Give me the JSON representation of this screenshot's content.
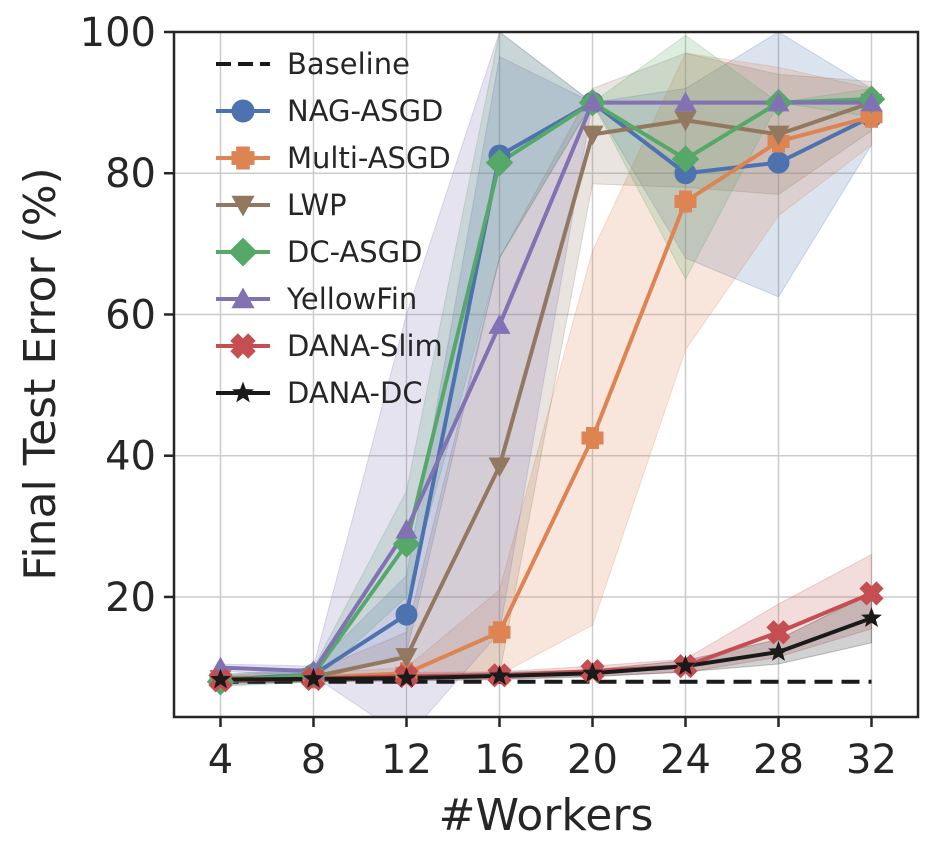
{
  "chart_data": {
    "type": "line",
    "title": "",
    "xlabel": "#Workers",
    "ylabel": "Final Test Error (%)",
    "x": [
      4,
      8,
      12,
      16,
      20,
      24,
      28,
      32
    ],
    "xlim": [
      2,
      34
    ],
    "ylim": [
      3,
      100
    ],
    "xticks": [
      "4",
      "8",
      "12",
      "16",
      "20",
      "24",
      "28",
      "32"
    ],
    "yticks": [
      "20",
      "40",
      "60",
      "80",
      "100"
    ],
    "ytick_values": [
      20,
      40,
      60,
      80,
      100
    ],
    "grid": true,
    "legend_position": "top-left",
    "series": [
      {
        "name": "Baseline",
        "color": "#1a1a1a",
        "marker": "none",
        "dashed": true,
        "values": [
          8,
          8,
          8,
          8,
          8,
          8,
          8,
          8
        ],
        "band": null
      },
      {
        "name": "NAG-ASGD",
        "color": "#4c72b0",
        "marker": "circle",
        "dashed": false,
        "values": [
          8.3,
          9.0,
          17.5,
          82.5,
          90,
          80,
          81.5,
          88
        ],
        "band": {
          "lower": [
            7.5,
            8.0,
            12,
            68,
            90,
            68,
            62.5,
            84
          ],
          "upper": [
            9.0,
            10.0,
            23,
            96.5,
            90,
            92,
            100,
            92
          ]
        }
      },
      {
        "name": "Multi-ASGD",
        "color": "#dd8452",
        "marker": "plus",
        "dashed": false,
        "values": [
          8.3,
          8.6,
          9.2,
          15,
          42.5,
          76,
          84.5,
          88
        ],
        "band": {
          "lower": [
            7.8,
            8.0,
            8.5,
            9,
            16,
            55,
            74,
            84
          ],
          "upper": [
            8.8,
            9.2,
            10.0,
            21,
            69,
            97,
            95,
            92
          ]
        }
      },
      {
        "name": "LWP",
        "color": "#937860",
        "marker": "triangle-down",
        "dashed": false,
        "values": [
          8.4,
          8.7,
          11.5,
          38.5,
          85.5,
          87.5,
          85.5,
          90
        ],
        "band": {
          "lower": [
            7.8,
            8.0,
            8.5,
            9,
            78.5,
            78,
            77,
            86
          ],
          "upper": [
            9.0,
            9.5,
            15,
            68,
            92,
            97,
            94,
            93
          ]
        }
      },
      {
        "name": "DC-ASGD",
        "color": "#55a868",
        "marker": "diamond",
        "dashed": false,
        "values": [
          8.0,
          9.0,
          27.5,
          81.5,
          90,
          82,
          90,
          90.5
        ],
        "band": {
          "lower": [
            7.3,
            8.0,
            20,
            68,
            90,
            65,
            90,
            88
          ],
          "upper": [
            8.7,
            10.0,
            35,
            100,
            90,
            99.5,
            90,
            92
          ]
        }
      },
      {
        "name": "YellowFin",
        "color": "#8172b3",
        "marker": "triangle-up",
        "dashed": false,
        "values": [
          10.0,
          9.5,
          29.5,
          58.5,
          90,
          90,
          90,
          90
        ],
        "band": {
          "lower": [
            9.5,
            8.8,
            0,
            15,
            90,
            90,
            90,
            90
          ],
          "upper": [
            10.5,
            10.2,
            60,
            100,
            90,
            90,
            90,
            90
          ]
        }
      },
      {
        "name": "DANA-Slim",
        "color": "#c44e52",
        "marker": "x",
        "dashed": false,
        "values": [
          8.2,
          8.4,
          8.8,
          8.9,
          9.5,
          10.2,
          15,
          20.5
        ],
        "band": {
          "lower": [
            7.8,
            8.0,
            8.3,
            8.4,
            8.8,
            9.3,
            11.5,
            15.5
          ],
          "upper": [
            8.6,
            8.8,
            9.3,
            9.4,
            10.2,
            11.2,
            19,
            26
          ]
        }
      },
      {
        "name": "DANA-DC",
        "color": "#1a1a1a",
        "marker": "star",
        "dashed": false,
        "values": [
          8.3,
          8.4,
          8.5,
          8.8,
          9.2,
          10.2,
          12.2,
          17
        ],
        "band": {
          "lower": [
            7.9,
            8.0,
            8.1,
            8.3,
            8.7,
            9.4,
            10.5,
            13.5
          ],
          "upper": [
            8.7,
            8.8,
            8.9,
            9.3,
            9.7,
            11.0,
            14,
            20.5
          ]
        }
      }
    ]
  }
}
